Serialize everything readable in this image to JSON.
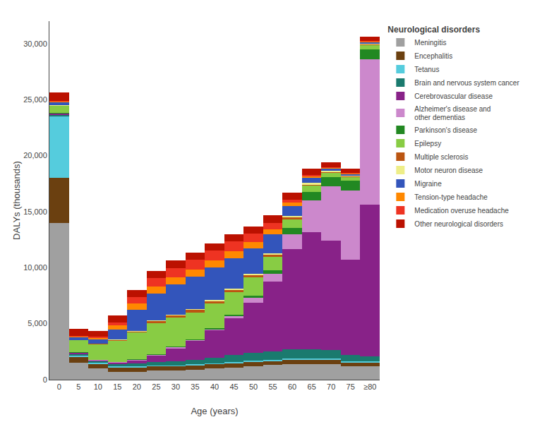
{
  "chart_data": {
    "type": "bar",
    "stacked": true,
    "xlabel": "Age (years)",
    "ylabel": "DALYs (thousands)",
    "legend_title": "Neurological disorders",
    "legend": "right",
    "grid": false,
    "categories": [
      "0",
      "5",
      "10",
      "15",
      "20",
      "25",
      "30",
      "35",
      "40",
      "45",
      "50",
      "55",
      "60",
      "65",
      "70",
      "75",
      "≥80"
    ],
    "ylim": [
      0,
      32000
    ],
    "yticks": [
      0,
      {
        "value": 5000,
        "label": "5,000"
      },
      {
        "value": 10000,
        "label": "10,000"
      },
      {
        "value": 15000,
        "label": "15,000"
      },
      {
        "value": 20000,
        "label": "20,000"
      },
      {
        "value": 25000,
        "label": "25,000"
      },
      {
        "value": 30000,
        "label": "30,000"
      }
    ],
    "series": [
      {
        "name": "Meningitis",
        "color": "#a0a0a0",
        "values": [
          14000,
          1500,
          1000,
          700,
          700,
          800,
          800,
          900,
          1000,
          1100,
          1200,
          1300,
          1400,
          1400,
          1400,
          1200,
          1200
        ]
      },
      {
        "name": "Encephalitis",
        "color": "#6b4010",
        "values": [
          4000,
          500,
          400,
          400,
          400,
          400,
          400,
          400,
          400,
          400,
          400,
          400,
          400,
          400,
          400,
          350,
          350
        ]
      },
      {
        "name": "Tetanus",
        "color": "#55ccdd",
        "values": [
          5500,
          200,
          100,
          80,
          80,
          80,
          80,
          80,
          80,
          80,
          80,
          80,
          80,
          80,
          80,
          60,
          60
        ]
      },
      {
        "name": "Brain and nervous system cancer",
        "color": "#1a7a6e",
        "values": [
          100,
          100,
          150,
          200,
          250,
          300,
          350,
          400,
          500,
          600,
          700,
          750,
          800,
          800,
          750,
          600,
          500
        ]
      },
      {
        "name": "Cerebrovascular disease",
        "color": "#882288",
        "values": [
          150,
          100,
          100,
          150,
          300,
          600,
          1200,
          1700,
          2400,
          3300,
          4500,
          6200,
          9000,
          10500,
          9800,
          8500,
          13500
        ]
      },
      {
        "name": "Alzheimer's disease and\nother dementias",
        "color": "#cc88cc",
        "values": [
          30,
          30,
          30,
          50,
          60,
          70,
          80,
          90,
          150,
          250,
          450,
          700,
          1300,
          2800,
          4800,
          6200,
          13000
        ]
      },
      {
        "name": "Parkinson's disease",
        "color": "#228822",
        "values": [
          5,
          5,
          5,
          5,
          10,
          15,
          20,
          30,
          50,
          80,
          180,
          350,
          550,
          750,
          850,
          850,
          850
        ]
      },
      {
        "name": "Epilepsy",
        "color": "#88cc44",
        "values": [
          700,
          1100,
          1400,
          1900,
          2400,
          2800,
          2600,
          2400,
          2200,
          2000,
          1600,
          1200,
          800,
          600,
          400,
          350,
          450
        ]
      },
      {
        "name": "Multiple sclerosis",
        "color": "#bb5511",
        "values": [
          5,
          15,
          40,
          80,
          130,
          180,
          220,
          250,
          270,
          250,
          220,
          180,
          130,
          80,
          60,
          50,
          40
        ]
      },
      {
        "name": "Motor neuron disease",
        "color": "#eeee88",
        "values": [
          3,
          3,
          3,
          8,
          12,
          18,
          25,
          35,
          55,
          75,
          95,
          120,
          140,
          140,
          120,
          100,
          90
        ]
      },
      {
        "name": "Migraine",
        "color": "#3355bb",
        "values": [
          300,
          250,
          350,
          900,
          1900,
          2400,
          2700,
          2900,
          2900,
          2700,
          2300,
          1700,
          900,
          450,
          180,
          90,
          90
        ]
      },
      {
        "name": "Tension-type headache",
        "color": "#ff8800",
        "values": [
          80,
          80,
          180,
          380,
          560,
          650,
          650,
          650,
          650,
          650,
          560,
          460,
          280,
          180,
          90,
          70,
          70
        ]
      },
      {
        "name": "Medication overuse headache",
        "color": "#ee3322",
        "values": [
          40,
          40,
          80,
          250,
          560,
          750,
          850,
          850,
          850,
          850,
          750,
          560,
          280,
          90,
          40,
          25,
          25
        ]
      },
      {
        "name": "Other neurological disorders",
        "color": "#bb1100",
        "values": [
          700,
          600,
          500,
          600,
          650,
          650,
          650,
          650,
          650,
          650,
          650,
          650,
          650,
          550,
          450,
          370,
          370
        ]
      }
    ]
  }
}
